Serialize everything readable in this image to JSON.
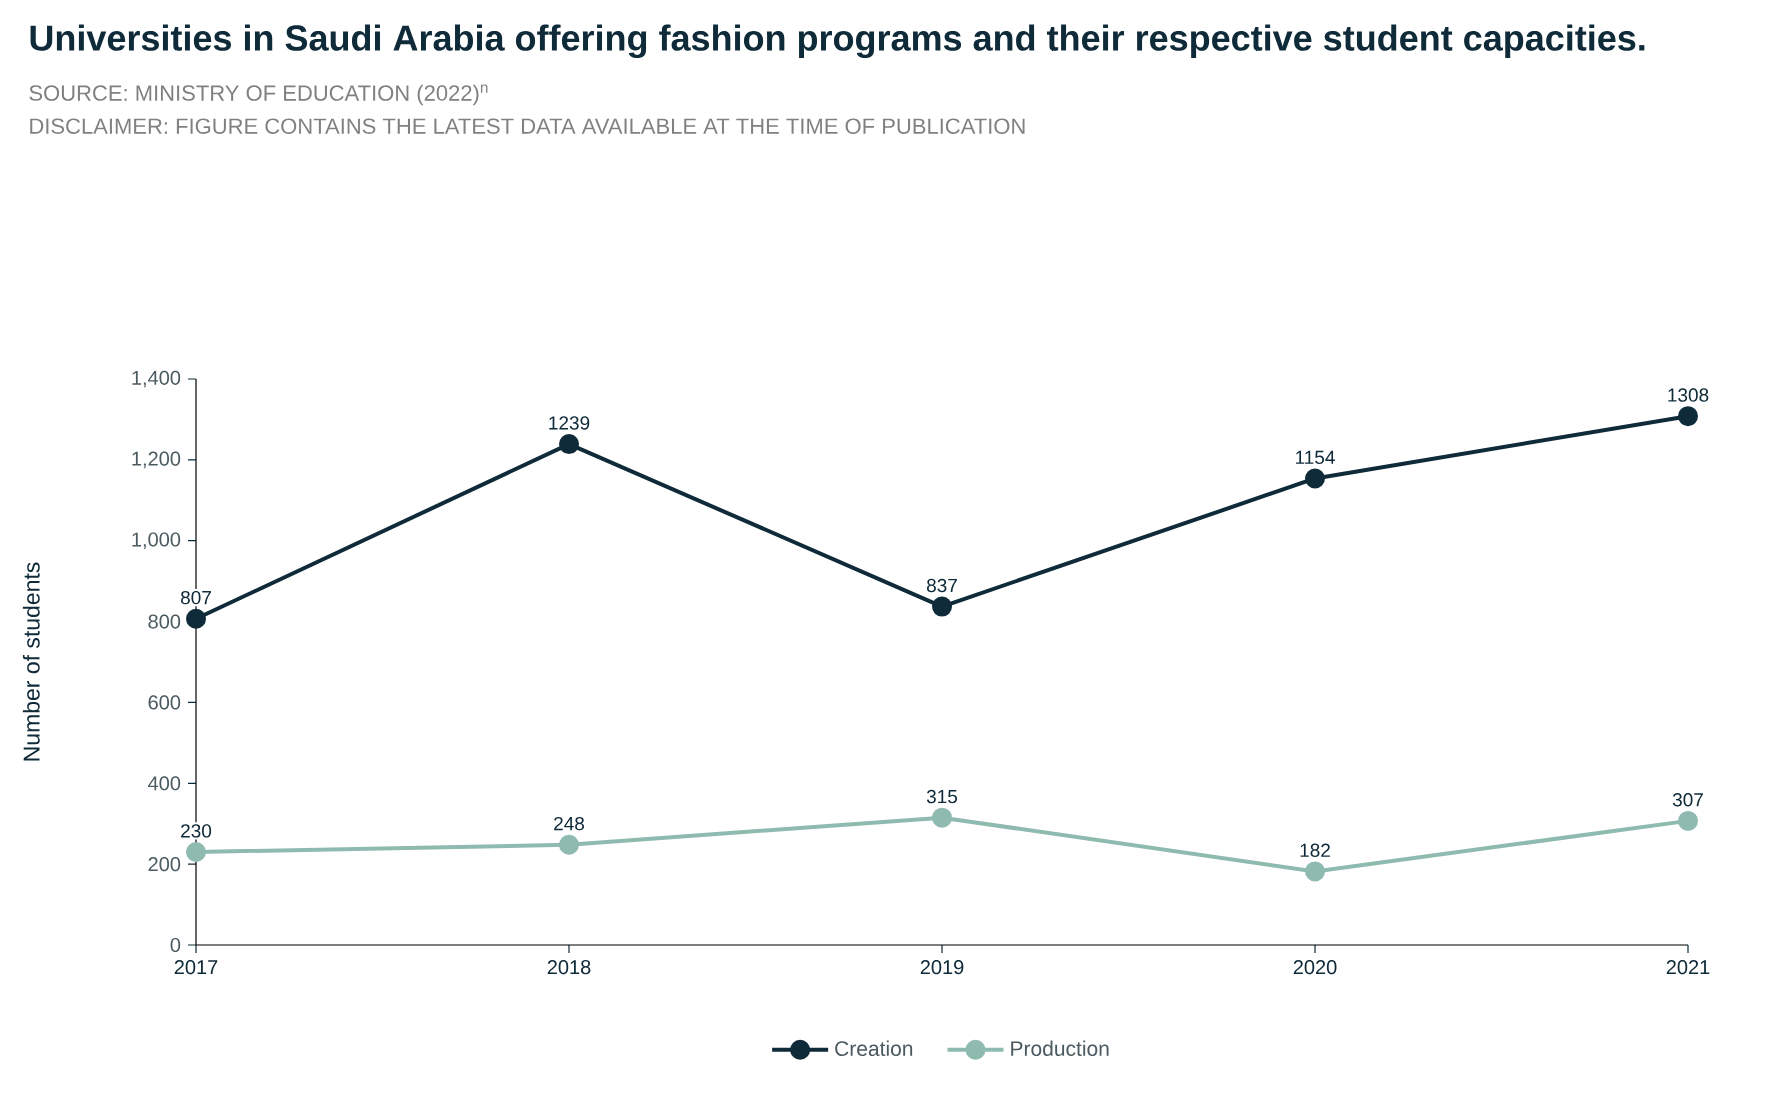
{
  "chart_data": {
    "type": "line",
    "title": "Universities in Saudi Arabia offering fashion programs and their respective student capacities.",
    "annotations": [
      "SOURCE: MINISTRY OF EDUCATION (2022)$^{n}$",
      "DISCLAIMER: FIGURE CONTAINS THE LATEST DATA AVAILABLE AT THE TIME OF PUBLICATION"
    ],
    "ylabel": "Number of students",
    "categories": [
      "2017",
      "2018",
      "2019",
      "2020",
      "2021"
    ],
    "series": [
      {
        "name": "Creation",
        "color": "#0f2a38",
        "values": [
          807,
          1239,
          837,
          1154,
          1308
        ]
      },
      {
        "name": "Production",
        "color": "#8fbab0",
        "values": [
          230,
          248,
          315,
          182,
          307
        ]
      }
    ],
    "ylim": [
      0,
      1400
    ],
    "yticks": [
      0,
      200,
      400,
      600,
      800,
      {
        "value": 1000,
        "label": "1,000"
      },
      {
        "value": 1200,
        "label": "1,200"
      },
      {
        "value": 1400,
        "label": "1,400"
      }
    ],
    "grid": false,
    "legend": "bottom",
    "marker": "circle",
    "line_style": "solid",
    "data_labels": true
  }
}
